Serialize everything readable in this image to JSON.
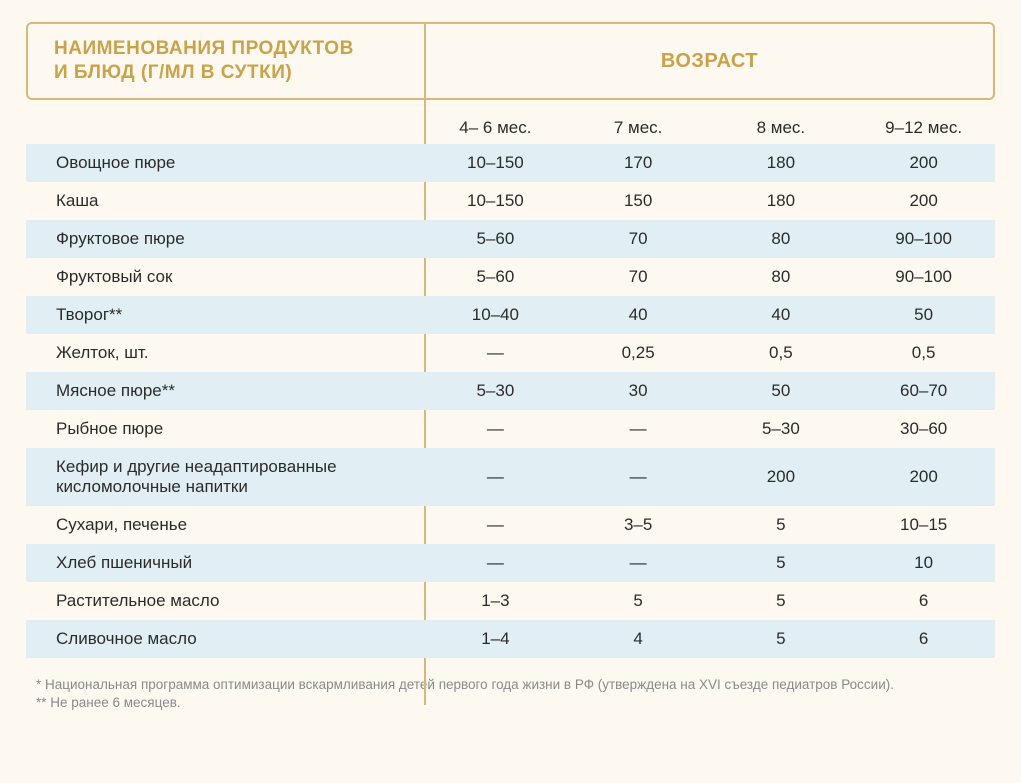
{
  "header": {
    "left_line1": "НАИМЕНОВАНИЯ ПРОДУКТОВ",
    "left_line2": "И БЛЮД (Г/МЛ В СУТКИ)",
    "right": "ВОЗРАСТ"
  },
  "age_columns": [
    "4– 6 мес.",
    "7 мес.",
    "8 мес.",
    "9–12 мес."
  ],
  "rows": [
    {
      "label": "Овощное пюре",
      "values": [
        "10–150",
        "170",
        "180",
        "200"
      ],
      "shaded": true
    },
    {
      "label": "Каша",
      "values": [
        "10–150",
        "150",
        "180",
        "200"
      ],
      "shaded": false
    },
    {
      "label": "Фруктовое пюре",
      "values": [
        "5–60",
        "70",
        "80",
        "90–100"
      ],
      "shaded": true
    },
    {
      "label": "Фруктовый сок",
      "values": [
        "5–60",
        "70",
        "80",
        "90–100"
      ],
      "shaded": false
    },
    {
      "label": "Творог**",
      "values": [
        "10–40",
        "40",
        "40",
        "50"
      ],
      "shaded": true
    },
    {
      "label": "Желток, шт.",
      "values": [
        "—",
        "0,25",
        "0,5",
        "0,5"
      ],
      "shaded": false
    },
    {
      "label": "Мясное пюре**",
      "values": [
        "5–30",
        "30",
        "50",
        "60–70"
      ],
      "shaded": true
    },
    {
      "label": "Рыбное пюре",
      "values": [
        "—",
        "—",
        "5–30",
        "30–60"
      ],
      "shaded": false
    },
    {
      "label": "Кефир и другие неадаптированные кисломолочные напитки",
      "values": [
        "—",
        "—",
        "200",
        "200"
      ],
      "shaded": true,
      "tall": true
    },
    {
      "label": "Сухари, печенье",
      "values": [
        "—",
        "3–5",
        "5",
        "10–15"
      ],
      "shaded": false
    },
    {
      "label": "Хлеб пшеничный",
      "values": [
        "—",
        "—",
        "5",
        "10"
      ],
      "shaded": true
    },
    {
      "label": "Растительное масло",
      "values": [
        "1–3",
        "5",
        "5",
        "6"
      ],
      "shaded": false
    },
    {
      "label": "Сливочное масло",
      "values": [
        "1–4",
        "4",
        "5",
        "6"
      ],
      "shaded": true
    }
  ],
  "footnotes": [
    "* Национальная программа оптимизации вскармливания детей первого года жизни в РФ (утверждена на XVI съезде педиатров России).",
    "** Не ранее 6 месяцев."
  ],
  "colors": {
    "page_bg": "#fdf9f0",
    "border": "#d5b97a",
    "title": "#c9a24a",
    "text": "#2b2b2b",
    "row_shade": "#e1eff4",
    "footnote": "#8a8a8a"
  }
}
